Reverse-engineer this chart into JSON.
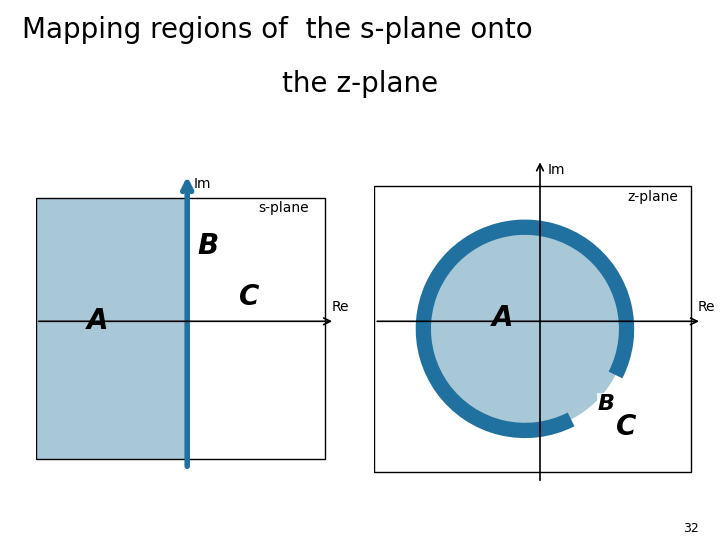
{
  "title_line1": "Mapping regions of  the s-plane onto",
  "title_line2": "the z-plane",
  "title_fontsize": 20,
  "page_number": "32",
  "background_color": "#ffffff",
  "fill_color": "#a8c8d8",
  "circle_edge_color": "#2070a0",
  "imaginary_axis_color": "#2070a0",
  "axis_color": "#000000",
  "small_fontsize": 10,
  "label_fontsize_large": 20,
  "label_fontsize_medium": 16,
  "s_plane_label": "s-plane",
  "z_plane_label": "z-plane",
  "im_label": "Im",
  "re_label": "Re"
}
